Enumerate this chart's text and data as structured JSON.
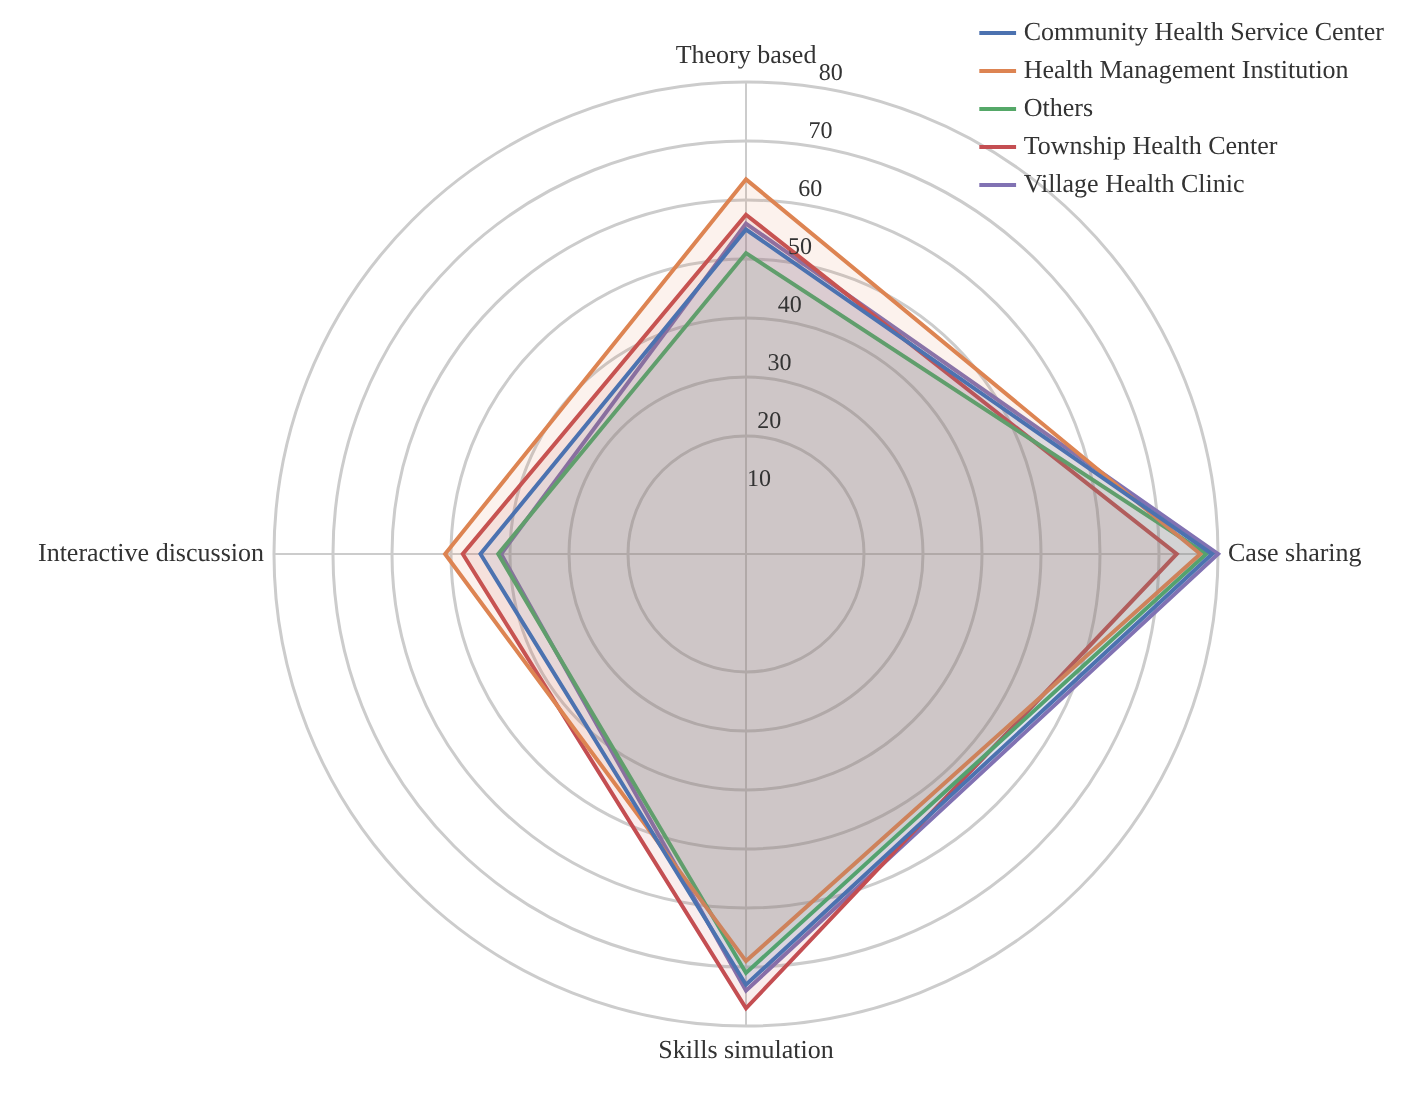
{
  "chart_data": {
    "type": "radar",
    "categories": [
      "Theory based",
      "Case sharing",
      "Skills simulation",
      "Interactive discussion"
    ],
    "series": [
      {
        "name": "Community Health Service Center",
        "color": "#4c72b0",
        "values": [
          55,
          79,
          73,
          45
        ]
      },
      {
        "name": "Health Management Institution",
        "color": "#dd8452",
        "values": [
          63.5,
          77,
          69,
          51
        ]
      },
      {
        "name": "Others",
        "color": "#55a868",
        "values": [
          51,
          78,
          71,
          42
        ]
      },
      {
        "name": "Township Health Center",
        "color": "#c44e52",
        "values": [
          57.5,
          73,
          77,
          48
        ]
      },
      {
        "name": "Village Health Clinic",
        "color": "#8172b3",
        "values": [
          56,
          80,
          74,
          41.5
        ]
      }
    ],
    "ylim": [
      0,
      80
    ],
    "yticks": [
      10,
      20,
      30,
      40,
      50,
      60,
      70,
      80
    ],
    "grid": true,
    "legend": "top right",
    "marker": "none"
  }
}
